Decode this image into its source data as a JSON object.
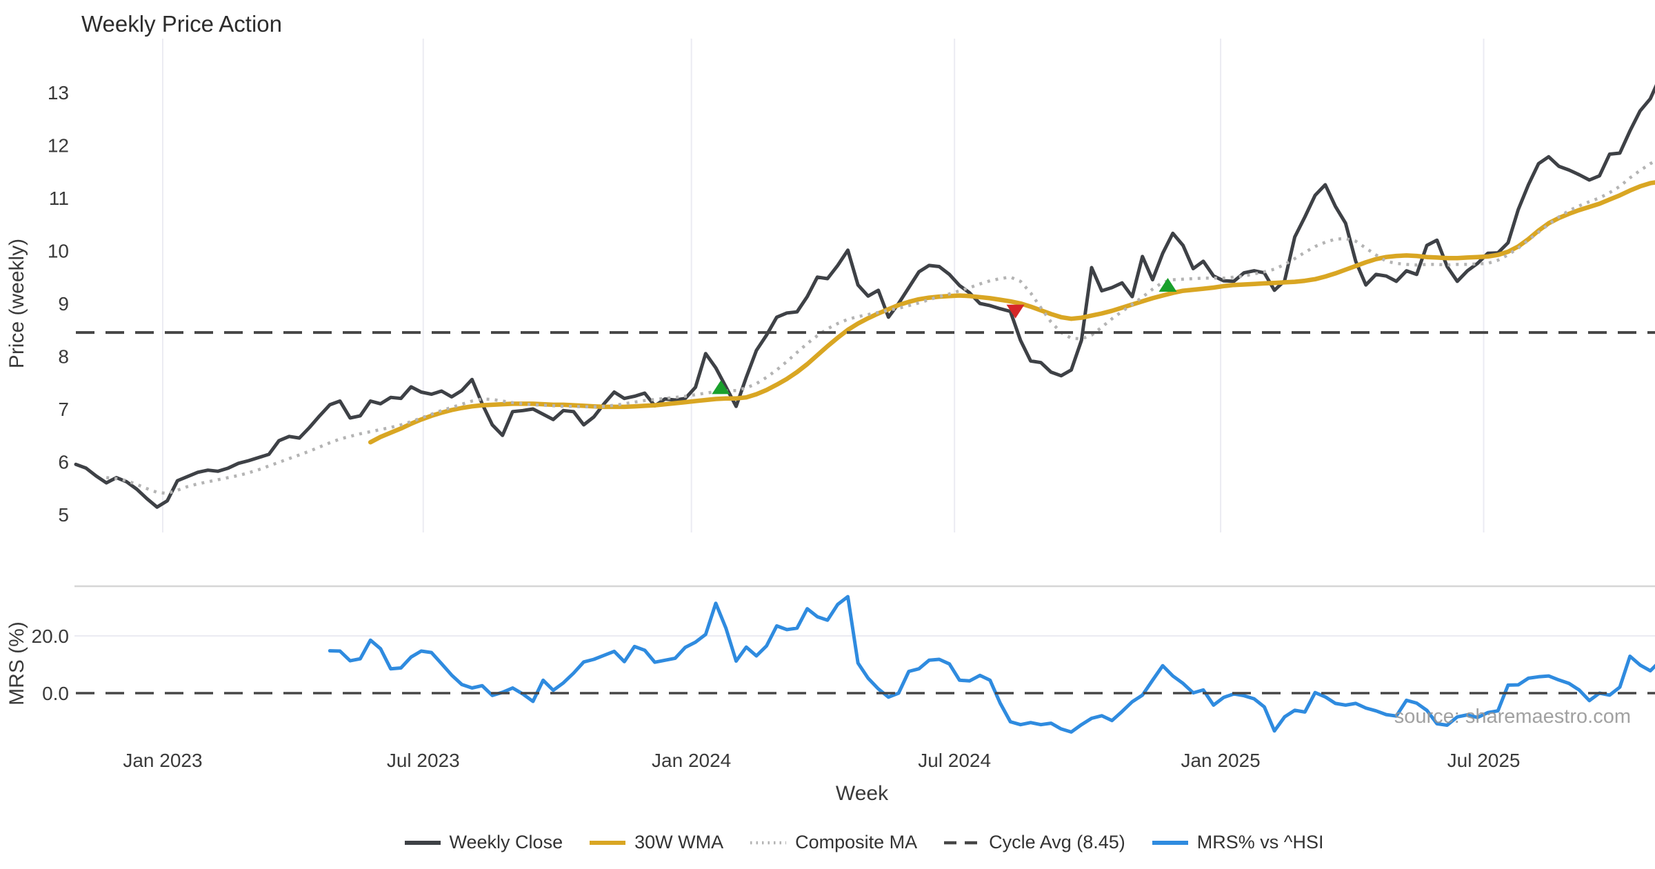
{
  "title": "Weekly Price Action",
  "watermark": "source: sharemaestro.com",
  "colors": {
    "close": "#3e4146",
    "wma": "#d9a623",
    "composite": "#b4b4b4",
    "cycle": "#464646",
    "mrs": "#2f8bdf",
    "buy": "#1aa02c",
    "sell": "#d62728",
    "grid": "#ebebf2",
    "spine": "#d6d6d6",
    "text": "#3a3a3a",
    "legend_text": "#333333",
    "watermark_text": "#979797"
  },
  "axes": {
    "price": {
      "label": "Price (weekly)",
      "yticks": [
        5,
        6,
        7,
        8,
        9,
        10,
        11,
        12,
        13
      ]
    },
    "mrs": {
      "label": "MRS (%)",
      "yticks": [
        {
          "label": "20.0",
          "value": 20
        },
        {
          "label": "0.0",
          "value": 0
        }
      ]
    },
    "x": {
      "label": "Week",
      "ticks": [
        {
          "label": "Jan 2023",
          "week": 8.55
        },
        {
          "label": "Jul 2023",
          "week": 34.2
        },
        {
          "label": "Jan 2024",
          "week": 60.6
        },
        {
          "label": "Jul 2024",
          "week": 86.5
        },
        {
          "label": "Jan 2025",
          "week": 112.7
        },
        {
          "label": "Jul 2025",
          "week": 138.6
        }
      ]
    }
  },
  "legend": [
    {
      "label": "Weekly Close",
      "color_key": "close",
      "style": "solid"
    },
    {
      "label": "30W WMA",
      "color_key": "wma",
      "style": "solid"
    },
    {
      "label": "Composite MA",
      "color_key": "composite",
      "style": "dotted"
    },
    {
      "label": "Cycle Avg (8.45)",
      "color_key": "cycle",
      "style": "dashed"
    },
    {
      "label": "MRS% vs ^HSI",
      "color_key": "mrs",
      "style": "solid"
    }
  ],
  "chart_data": {
    "type": "line",
    "title": "Weekly Price Action",
    "x_unit": "week",
    "x_start_date": "2022-10-31",
    "panels": [
      {
        "id": "price",
        "ylabel": "Price (weekly)",
        "ylim": [
          4.8,
          14.0
        ],
        "series": [
          {
            "name": "Weekly Close",
            "color_key": "close",
            "style": "solid",
            "width": 5,
            "start_week": 0,
            "values": [
              5.95,
              5.88,
              5.73,
              5.6,
              5.7,
              5.62,
              5.48,
              5.3,
              5.14,
              5.26,
              5.64,
              5.72,
              5.8,
              5.84,
              5.82,
              5.88,
              5.97,
              6.02,
              6.08,
              6.14,
              6.4,
              6.48,
              6.45,
              6.65,
              6.87,
              7.08,
              7.15,
              6.83,
              6.87,
              7.15,
              7.1,
              7.22,
              7.2,
              7.42,
              7.32,
              7.28,
              7.34,
              7.23,
              7.35,
              7.56,
              7.1,
              6.7,
              6.5,
              6.95,
              6.97,
              7.0,
              6.9,
              6.8,
              6.97,
              6.95,
              6.7,
              6.85,
              7.1,
              7.32,
              7.2,
              7.24,
              7.3,
              7.06,
              7.19,
              7.17,
              7.2,
              7.41,
              8.05,
              7.78,
              7.42,
              7.05,
              7.6,
              8.11,
              8.4,
              8.74,
              8.82,
              8.84,
              9.13,
              9.5,
              9.47,
              9.72,
              10.01,
              9.35,
              9.14,
              9.25,
              8.74,
              9.0,
              9.3,
              9.6,
              9.72,
              9.7,
              9.55,
              9.34,
              9.2,
              9.0,
              8.96,
              8.9,
              8.85,
              8.3,
              7.91,
              7.88,
              7.7,
              7.63,
              7.74,
              8.3,
              9.68,
              9.24,
              9.3,
              9.39,
              9.13,
              9.89,
              9.45,
              9.95,
              10.33,
              10.1,
              9.66,
              9.8,
              9.52,
              9.43,
              9.42,
              9.58,
              9.62,
              9.58,
              9.25,
              9.43,
              10.26,
              10.64,
              11.05,
              11.25,
              10.84,
              10.52,
              9.8,
              9.35,
              9.55,
              9.52,
              9.42,
              9.62,
              9.55,
              10.1,
              10.2,
              9.7,
              9.42,
              9.62,
              9.76,
              9.95,
              9.96,
              10.15,
              10.78,
              11.25,
              11.65,
              11.78,
              11.6,
              11.53,
              11.44,
              11.34,
              11.42,
              11.83,
              11.85,
              12.27,
              12.65,
              12.88,
              13.31
            ]
          },
          {
            "name": "30W WMA",
            "color_key": "wma",
            "style": "solid",
            "width": 6.5,
            "start_week": 29,
            "values": [
              6.37,
              6.47,
              6.55,
              6.63,
              6.72,
              6.8,
              6.87,
              6.93,
              6.98,
              7.02,
              7.05,
              7.07,
              7.08,
              7.09,
              7.1,
              7.1,
              7.1,
              7.09,
              7.08,
              7.08,
              7.07,
              7.06,
              7.05,
              7.04,
              7.04,
              7.04,
              7.05,
              7.06,
              7.07,
              7.09,
              7.11,
              7.13,
              7.15,
              7.17,
              7.19,
              7.2,
              7.2,
              7.22,
              7.28,
              7.36,
              7.46,
              7.57,
              7.7,
              7.85,
              8.02,
              8.19,
              8.35,
              8.5,
              8.62,
              8.72,
              8.81,
              8.89,
              8.97,
              9.03,
              9.08,
              9.11,
              9.13,
              9.14,
              9.15,
              9.14,
              9.12,
              9.1,
              9.07,
              9.04,
              9.0,
              8.94,
              8.87,
              8.8,
              8.74,
              8.71,
              8.73,
              8.77,
              8.81,
              8.86,
              8.92,
              8.98,
              9.04,
              9.1,
              9.15,
              9.2,
              9.24,
              9.26,
              9.28,
              9.3,
              9.33,
              9.35,
              9.36,
              9.37,
              9.38,
              9.39,
              9.4,
              9.41,
              9.43,
              9.46,
              9.51,
              9.57,
              9.64,
              9.71,
              9.78,
              9.84,
              9.88,
              9.9,
              9.91,
              9.9,
              9.88,
              9.87,
              9.86,
              9.86,
              9.87,
              9.88,
              9.89,
              9.92,
              9.98,
              10.08,
              10.22,
              10.38,
              10.52,
              10.62,
              10.7,
              10.77,
              10.83,
              10.89,
              10.97,
              11.05,
              11.14,
              11.22,
              11.28,
              11.31
            ]
          },
          {
            "name": "Composite MA",
            "color_key": "composite",
            "style": "dotted",
            "width": 4.5,
            "start_week": 3,
            "values": [
              5.7,
              5.68,
              5.64,
              5.57,
              5.49,
              5.42,
              5.4,
              5.46,
              5.53,
              5.58,
              5.62,
              5.66,
              5.7,
              5.74,
              5.79,
              5.85,
              5.92,
              5.99,
              6.06,
              6.13,
              6.2,
              6.28,
              6.36,
              6.43,
              6.48,
              6.53,
              6.57,
              6.61,
              6.65,
              6.7,
              6.76,
              6.83,
              6.9,
              6.97,
              7.03,
              7.09,
              7.15,
              7.19,
              7.18,
              7.15,
              7.12,
              7.1,
              7.08,
              7.07,
              7.06,
              7.05,
              7.05,
              7.04,
              7.04,
              7.05,
              7.07,
              7.1,
              7.13,
              7.16,
              7.18,
              7.2,
              7.22,
              7.24,
              7.27,
              7.3,
              7.33,
              7.34,
              7.35,
              7.4,
              7.48,
              7.6,
              7.74,
              7.9,
              8.07,
              8.24,
              8.39,
              8.52,
              8.62,
              8.7,
              8.75,
              8.79,
              8.83,
              8.87,
              8.91,
              8.96,
              9.01,
              9.07,
              9.13,
              9.18,
              9.24,
              9.3,
              9.37,
              9.43,
              9.47,
              9.5,
              9.42,
              9.2,
              8.92,
              8.65,
              8.45,
              8.34,
              8.33,
              8.4,
              8.55,
              8.71,
              8.85,
              8.98,
              9.12,
              9.27,
              9.4,
              9.45,
              9.46,
              9.47,
              9.48,
              9.48,
              9.48,
              9.5,
              9.52,
              9.56,
              9.6,
              9.65,
              9.74,
              9.85,
              9.97,
              10.08,
              10.16,
              10.22,
              10.23,
              10.18,
              10.05,
              9.92,
              9.8,
              9.76,
              9.74,
              9.73,
              9.74,
              9.74,
              9.73,
              9.74,
              9.74,
              9.75,
              9.76,
              9.82,
              9.92,
              10.05,
              10.2,
              10.35,
              10.5,
              10.64,
              10.76,
              10.85,
              10.93,
              11.0,
              11.1,
              11.22,
              11.38,
              11.52,
              11.65,
              11.75
            ]
          },
          {
            "name": "Cycle Avg (8.45)",
            "color_key": "cycle",
            "style": "dashed",
            "width": 4,
            "constant": 8.45
          }
        ],
        "markers": [
          {
            "type": "buy",
            "week": 63.5,
            "value": 7.4
          },
          {
            "type": "sell",
            "week": 92.5,
            "value": 8.86
          },
          {
            "type": "buy",
            "week": 107.5,
            "value": 9.34
          }
        ]
      },
      {
        "id": "mrs",
        "ylabel": "MRS (%)",
        "ylim": [
          -15.7,
          37.3
        ],
        "series": [
          {
            "name": "MRS% vs ^HSI",
            "color_key": "mrs",
            "style": "solid",
            "width": 5,
            "start_week": 25,
            "values": [
              14.8,
              14.7,
              11.3,
              12.0,
              18.5,
              15.5,
              8.5,
              8.8,
              12.6,
              14.7,
              14.2,
              10.3,
              6.3,
              3.0,
              1.8,
              2.6,
              -0.8,
              0.3,
              1.8,
              -0.3,
              -2.9,
              4.5,
              1.0,
              3.6,
              7.0,
              10.9,
              11.8,
              13.2,
              14.6,
              11.0,
              16.3,
              15.0,
              10.8,
              11.5,
              12.2,
              16.0,
              17.8,
              20.5,
              31.4,
              22.7,
              11.2,
              16.1,
              13.0,
              16.5,
              23.5,
              22.2,
              22.7,
              29.5,
              26.7,
              25.5,
              31.0,
              33.7,
              10.5,
              5.2,
              1.5,
              -1.4,
              0.0,
              7.6,
              8.5,
              11.5,
              11.8,
              10.2,
              4.5,
              4.3,
              6.2,
              4.5,
              -3.5,
              -10.0,
              -11.0,
              -10.3,
              -11.0,
              -10.5,
              -12.5,
              -13.6,
              -11.0,
              -8.8,
              -7.9,
              -9.6,
              -6.4,
              -3.0,
              -0.7,
              4.5,
              9.6,
              6.0,
              3.4,
              0.1,
              1.1,
              -4.2,
              -1.5,
              -0.3,
              -0.9,
              -2.0,
              -4.8,
              -13.2,
              -8.3,
              -6.0,
              -6.6,
              0.2,
              -1.3,
              -3.6,
              -4.2,
              -3.6,
              -5.2,
              -6.2,
              -7.5,
              -8.0,
              -2.5,
              -3.5,
              -6.0,
              -10.7,
              -11.2,
              -8.3,
              -7.6,
              -8.5,
              -6.8,
              -6.2,
              2.8,
              2.9,
              5.2,
              5.7,
              6.0,
              4.6,
              3.4,
              1.1,
              -2.6,
              0.0,
              -0.7,
              2.1,
              12.9,
              9.8,
              7.8,
              11.3
            ]
          },
          {
            "name": "zero line",
            "color_key": "cycle",
            "style": "dashed",
            "width": 3.5,
            "constant": 0
          }
        ]
      }
    ]
  }
}
